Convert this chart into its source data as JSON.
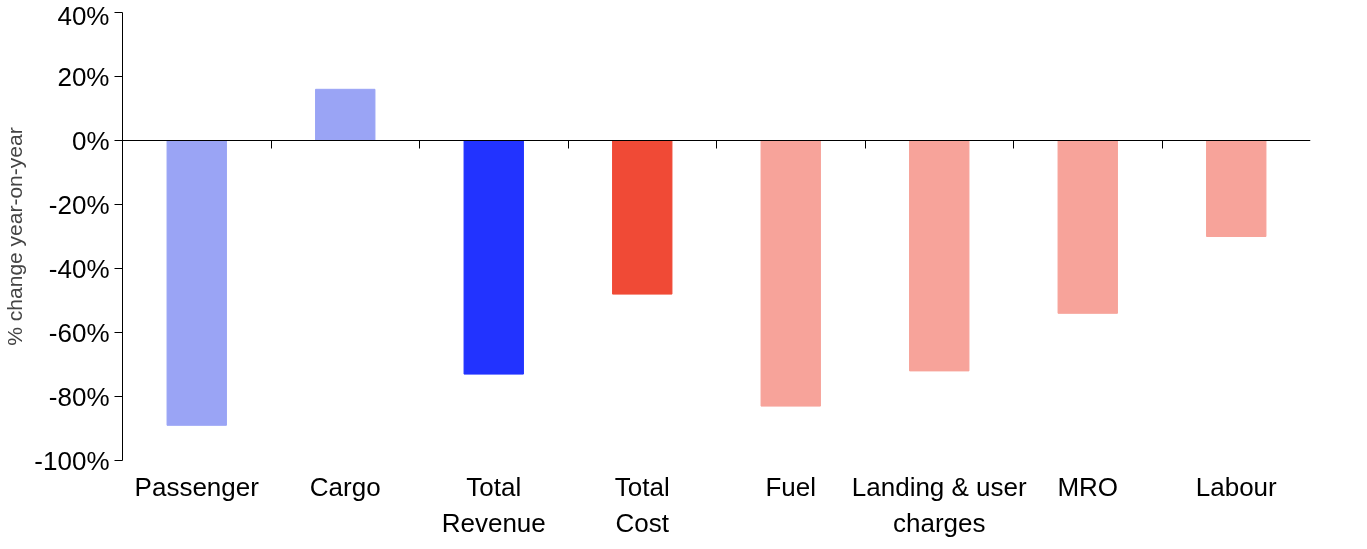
{
  "chart_data": {
    "type": "bar",
    "ylabel": "% change year-on-year",
    "categories": [
      "Passenger",
      "Cargo",
      "Total Revenue",
      "Total Cost",
      "Fuel",
      "Landing & user charges",
      "MRO",
      "Labour"
    ],
    "values": [
      -89,
      16,
      -73,
      -48,
      -83,
      -72,
      -54,
      -30
    ],
    "colors": [
      "#9aa4f5",
      "#9aa4f5",
      "#2233ff",
      "#f04a36",
      "#f7a39a",
      "#f7a39a",
      "#f7a39a",
      "#f7a39a"
    ],
    "ylim": [
      -100,
      40
    ],
    "yticks": [
      {
        "value": -100,
        "label": "-100%"
      },
      {
        "value": -80,
        "label": "-80%"
      },
      {
        "value": -60,
        "label": "-60%"
      },
      {
        "value": -40,
        "label": "-40%"
      },
      {
        "value": -20,
        "label": "-20%"
      },
      {
        "value": 0,
        "label": "0%"
      },
      {
        "value": 20,
        "label": "20%"
      },
      {
        "value": 40,
        "label": "40%"
      }
    ]
  }
}
